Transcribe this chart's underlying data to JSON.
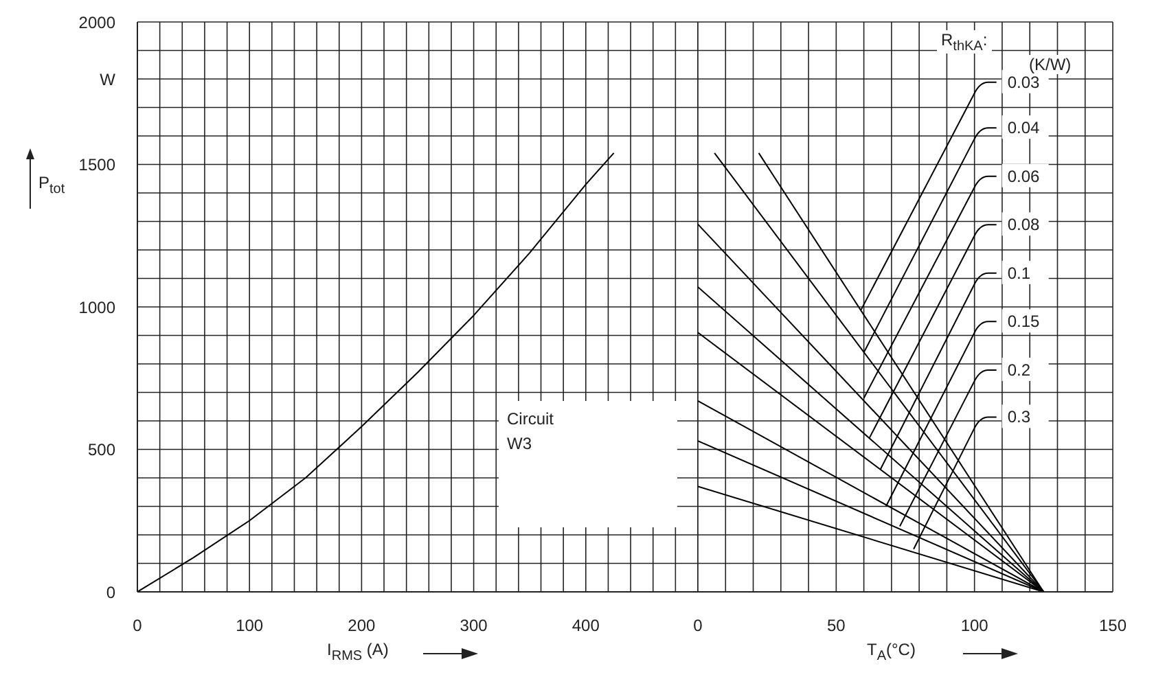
{
  "chart_data": [
    {
      "type": "line",
      "xlabel": "I$_{RMS}$ (A)",
      "ylabel": "P$_{tot}$",
      "annotations": [
        "Circuit",
        "W3"
      ],
      "xlim": [
        0,
        500
      ],
      "ylim": [
        0,
        2000
      ],
      "grid": true,
      "marker": "none",
      "xticks": [
        0,
        {
          "value": 20,
          "label": null
        },
        {
          "value": 40,
          "label": null
        },
        {
          "value": 60,
          "label": null
        },
        {
          "value": 80,
          "label": null
        },
        100,
        {
          "value": 120,
          "label": null
        },
        {
          "value": 140,
          "label": null
        },
        {
          "value": 160,
          "label": null
        },
        {
          "value": 180,
          "label": null
        },
        200,
        {
          "value": 220,
          "label": null
        },
        {
          "value": 240,
          "label": null
        },
        {
          "value": 260,
          "label": null
        },
        {
          "value": 280,
          "label": null
        },
        300,
        {
          "value": 320,
          "label": null
        },
        {
          "value": 340,
          "label": null
        },
        {
          "value": 360,
          "label": null
        },
        {
          "value": 380,
          "label": null
        },
        400,
        {
          "value": 420,
          "label": null
        },
        {
          "value": 440,
          "label": null
        },
        {
          "value": 460,
          "label": null
        },
        {
          "value": 480,
          "label": null
        },
        {
          "value": 500,
          "label": null
        }
      ],
      "yticks": [
        0,
        {
          "value": 100,
          "label": null
        },
        {
          "value": 200,
          "label": null
        },
        {
          "value": 300,
          "label": null
        },
        {
          "value": 400,
          "label": null
        },
        500,
        {
          "value": 600,
          "label": null
        },
        {
          "value": 700,
          "label": null
        },
        {
          "value": 800,
          "label": null
        },
        {
          "value": 900,
          "label": null
        },
        1000,
        {
          "value": 1100,
          "label": null
        },
        {
          "value": 1200,
          "label": null
        },
        {
          "value": 1300,
          "label": null
        },
        {
          "value": 1400,
          "label": null
        },
        1500,
        {
          "value": 1600,
          "label": null
        },
        {
          "value": 1700,
          "label": null
        },
        {
          "value": 1800,
          "label": "W"
        },
        {
          "value": 1900,
          "label": null
        },
        2000
      ],
      "series": [
        {
          "color": "#000000",
          "x": [
            0,
            50,
            100,
            150,
            200,
            250,
            300,
            350,
            400,
            425
          ],
          "values": [
            0,
            120,
            250,
            400,
            580,
            770,
            970,
            1190,
            1430,
            1540
          ]
        }
      ]
    },
    {
      "type": "line",
      "xlabel": "T$_{A}$(°C)",
      "legend_title": "R$_{thKA}$:",
      "annotations": [
        "(K/W)"
      ],
      "xlim": [
        0,
        150
      ],
      "ylim": [
        0,
        2000
      ],
      "grid": true,
      "marker": "none",
      "legend": "right",
      "tick_labels": "x",
      "xticks": [
        0,
        {
          "value": 10,
          "label": null
        },
        {
          "value": 20,
          "label": null
        },
        {
          "value": 30,
          "label": null
        },
        {
          "value": 40,
          "label": null
        },
        50,
        {
          "value": 60,
          "label": null
        },
        {
          "value": 70,
          "label": null
        },
        {
          "value": 80,
          "label": null
        },
        {
          "value": 90,
          "label": null
        },
        100,
        {
          "value": 110,
          "label": null
        },
        {
          "value": 120,
          "label": null
        },
        {
          "value": 130,
          "label": null
        },
        {
          "value": 140,
          "label": null
        },
        150
      ],
      "yticks": [
        0,
        {
          "value": 100,
          "label": null
        },
        {
          "value": 200,
          "label": null
        },
        {
          "value": 300,
          "label": null
        },
        {
          "value": 400,
          "label": null
        },
        500,
        {
          "value": 600,
          "label": null
        },
        {
          "value": 700,
          "label": null
        },
        {
          "value": 800,
          "label": null
        },
        {
          "value": 900,
          "label": null
        },
        1000,
        {
          "value": 1100,
          "label": null
        },
        {
          "value": 1200,
          "label": null
        },
        {
          "value": 1300,
          "label": null
        },
        {
          "value": 1400,
          "label": null
        },
        1500,
        {
          "value": 1600,
          "label": null
        },
        {
          "value": 1700,
          "label": null
        },
        {
          "value": 1800,
          "label": null
        },
        {
          "value": 1900,
          "label": null
        },
        2000
      ],
      "series": [
        {
          "color": "#000000",
          "x": [
            6,
            125
          ],
          "values": [
            1540,
            0
          ]
        },
        {
          "color": "#000000",
          "x": [
            22,
            125
          ],
          "values": [
            1540,
            0
          ]
        },
        {
          "color": "#000000",
          "x": [
            0,
            125
          ],
          "values": [
            1290,
            0
          ]
        },
        {
          "color": "#000000",
          "x": [
            0,
            125
          ],
          "values": [
            1070,
            0
          ]
        },
        {
          "color": "#000000",
          "x": [
            0,
            125
          ],
          "values": [
            910,
            0
          ]
        },
        {
          "color": "#000000",
          "x": [
            0,
            125
          ],
          "values": [
            670,
            0
          ]
        },
        {
          "color": "#000000",
          "x": [
            0,
            125
          ],
          "values": [
            530,
            0
          ]
        },
        {
          "color": "#000000",
          "x": [
            0,
            125
          ],
          "values": [
            370,
            0
          ]
        },
        {
          "name": "0.03",
          "color": "#000000",
          "x": [
            59,
            100
          ],
          "values": [
            990,
            1750
          ]
        },
        {
          "name": "0.04",
          "color": "#000000",
          "x": [
            60,
            100
          ],
          "values": [
            840,
            1590
          ]
        },
        {
          "name": "0.06",
          "color": "#000000",
          "x": [
            60,
            100
          ],
          "values": [
            680,
            1420
          ]
        },
        {
          "name": "0.08",
          "color": "#000000",
          "x": [
            62,
            100
          ],
          "values": [
            540,
            1250
          ]
        },
        {
          "name": "0.1",
          "color": "#000000",
          "x": [
            66,
            100
          ],
          "values": [
            430,
            1080
          ]
        },
        {
          "name": "0.15",
          "color": "#000000",
          "x": [
            68,
            100
          ],
          "values": [
            300,
            910
          ]
        },
        {
          "name": "0.2",
          "color": "#000000",
          "x": [
            73,
            100
          ],
          "values": [
            230,
            740
          ]
        },
        {
          "name": "0.3",
          "color": "#000000",
          "x": [
            78,
            100
          ],
          "values": [
            150,
            575
          ]
        }
      ]
    }
  ]
}
